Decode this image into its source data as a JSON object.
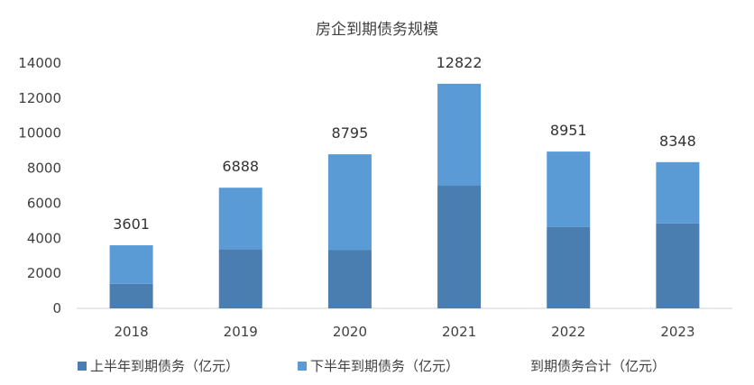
{
  "chart_data": {
    "type": "bar",
    "stacked": true,
    "title": "房企到期债务规模",
    "xlabel": "",
    "ylabel": "",
    "categories": [
      "2018",
      "2019",
      "2020",
      "2021",
      "2022",
      "2023"
    ],
    "series": [
      {
        "name": "上半年到期债务（亿元）",
        "color": "#4a7db0",
        "values": [
          1400,
          3380,
          3320,
          7000,
          4650,
          4850
        ]
      },
      {
        "name": "下半年到期债务（亿元）",
        "color": "#5b9bd5",
        "values": [
          2201,
          3508,
          5475,
          5822,
          4301,
          3498
        ]
      }
    ],
    "totals": {
      "name": "到期债务合计（亿元）",
      "values": [
        3601,
        6888,
        8795,
        12822,
        8951,
        8348
      ]
    },
    "ylim": [
      0,
      14000
    ],
    "yticks": [
      0,
      2000,
      4000,
      6000,
      8000,
      10000,
      12000,
      14000
    ],
    "grid": false,
    "legend_position": "bottom"
  }
}
